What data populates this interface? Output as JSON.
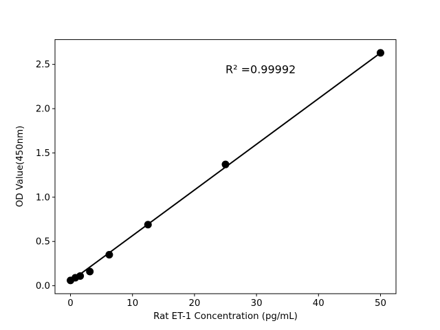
{
  "chart_data": {
    "type": "scatter",
    "title": "",
    "xlabel": "Rat ET-1 Concentration (pg/mL)",
    "ylabel": "OD Value(450nm)",
    "x": [
      0,
      0.78,
      1.56,
      3.12,
      6.25,
      12.5,
      25,
      50
    ],
    "y": [
      0.06,
      0.09,
      0.11,
      0.16,
      0.35,
      0.69,
      1.37,
      2.63
    ],
    "fit_line": {
      "x": [
        0,
        50
      ],
      "y": [
        0.05,
        2.63
      ]
    },
    "annotation": {
      "text": "R² =0.99992",
      "x": 25,
      "y": 2.4
    },
    "xticks": [
      "0",
      "10",
      "20",
      "30",
      "40",
      "50"
    ],
    "yticks": [
      "0.0",
      "0.5",
      "1.0",
      "1.5",
      "2.0",
      "2.5"
    ],
    "xlim": [
      -2.5,
      52.5
    ],
    "ylim": [
      -0.09,
      2.78
    ],
    "grid": false,
    "legend": null,
    "marker_color": "#000000",
    "line_color": "#000000",
    "axis_color": "#000000",
    "background": "#ffffff"
  }
}
